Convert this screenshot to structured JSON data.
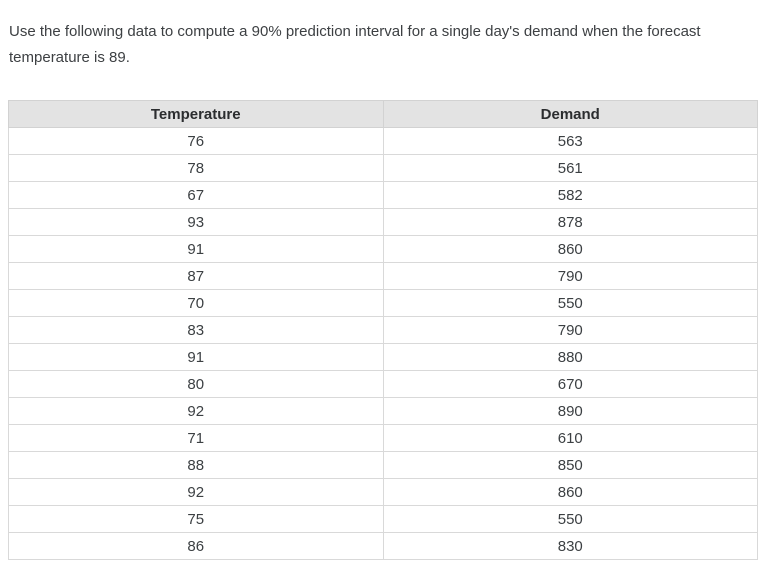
{
  "question": {
    "text": "Use the following data to compute a 90% prediction interval for a single day's demand when the forecast temperature is 89."
  },
  "table": {
    "columns": [
      "Temperature",
      "Demand"
    ],
    "rows": [
      [
        76,
        563
      ],
      [
        78,
        561
      ],
      [
        67,
        582
      ],
      [
        93,
        878
      ],
      [
        91,
        860
      ],
      [
        87,
        790
      ],
      [
        70,
        550
      ],
      [
        83,
        790
      ],
      [
        91,
        880
      ],
      [
        80,
        670
      ],
      [
        92,
        890
      ],
      [
        71,
        610
      ],
      [
        88,
        850
      ],
      [
        92,
        860
      ],
      [
        75,
        550
      ],
      [
        86,
        830
      ]
    ]
  },
  "chart_data": {
    "type": "table",
    "title": "",
    "columns": [
      "Temperature",
      "Demand"
    ],
    "x": [
      76,
      78,
      67,
      93,
      91,
      87,
      70,
      83,
      91,
      80,
      92,
      71,
      88,
      92,
      75,
      86
    ],
    "series": [
      {
        "name": "Demand",
        "values": [
          563,
          561,
          582,
          878,
          860,
          790,
          550,
          790,
          880,
          670,
          890,
          610,
          850,
          860,
          550,
          830
        ]
      }
    ]
  },
  "colors": {
    "header_bg": "#e3e3e3",
    "border": "#d9d9d9",
    "text": "#3c4043"
  }
}
